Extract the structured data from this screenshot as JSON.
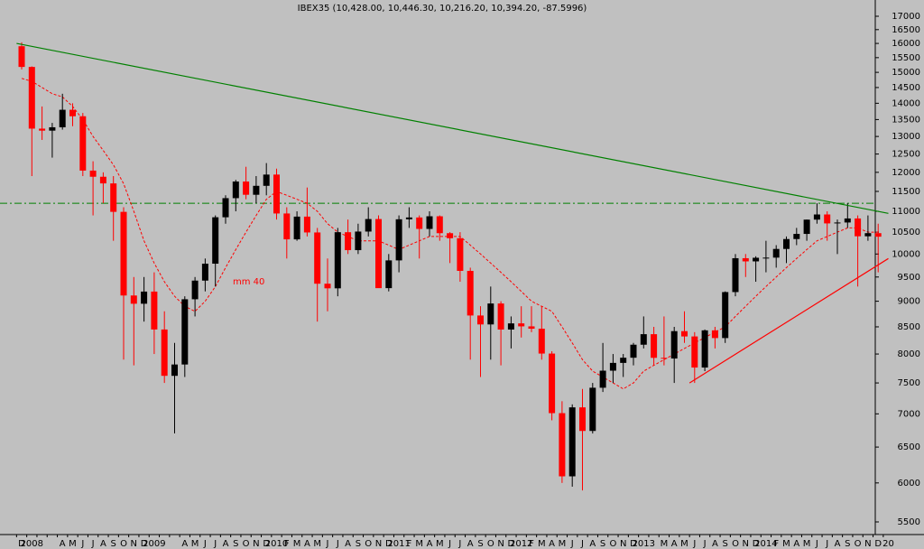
{
  "chart_data": {
    "type": "candlestick",
    "title": "IBEX35 (10,428.00, 10,446.30, 10,216.20, 10,394.20, -87.5996)",
    "log_scale": true,
    "background": "#c0c0c0",
    "up_color": "#000000",
    "down_color": "#ff0000",
    "categories": [
      "D",
      "2008",
      null,
      null,
      "A",
      "M",
      "J",
      "J",
      "A",
      "S",
      "O",
      "N",
      "D",
      "2009",
      null,
      null,
      "A",
      "M",
      "J",
      "J",
      "A",
      "S",
      "O",
      "N",
      "D",
      "2010",
      "F",
      "M",
      "A",
      "M",
      "J",
      "J",
      "A",
      "S",
      "O",
      "N",
      "D",
      "2011",
      "F",
      "M",
      "A",
      "M",
      "J",
      "J",
      "A",
      "S",
      "O",
      "N",
      "D",
      "2012",
      "F",
      "M",
      "A",
      "M",
      "J",
      "J",
      "A",
      "S",
      "O",
      "N",
      "D",
      "2013",
      null,
      "M",
      "A",
      "M",
      "J",
      "J",
      "A",
      "S",
      "O",
      "N",
      "D",
      "2014",
      "F",
      "M",
      "A",
      "M",
      "J",
      "J",
      "A",
      "S",
      "O",
      "N",
      "D",
      "20"
    ],
    "open": [
      15900,
      15182,
      13229,
      13170,
      13269,
      13798,
      13600,
      12046,
      11882,
      11707,
      10987,
      9116,
      8950,
      9196,
      8450,
      7620,
      7815,
      9040,
      9424,
      9787,
      10855,
      11328,
      11756,
      11414,
      11644,
      11940,
      10947,
      10333,
      10871,
      10493,
      9359,
      9263,
      10499,
      10087,
      10514,
      10812,
      9267,
      9859,
      10806,
      10850,
      10576,
      10879,
      10476,
      10359,
      9631,
      8718,
      8546,
      8955,
      8449,
      8566,
      8509,
      8465,
      8008,
      7011,
      6089,
      7102,
      6738,
      7420,
      7708,
      7843,
      7934,
      8168,
      8362,
      7932,
      7920,
      8419,
      8320,
      7762,
      8434,
      8290,
      9186,
      9907,
      9837,
      9917,
      9920,
      10114,
      10340,
      10459,
      10798,
      10923,
      10707,
      10729,
      10826,
      10404,
      10477,
      null
    ],
    "high": [
      16040,
      15200,
      13900,
      13400,
      14300,
      14000,
      13700,
      12300,
      12000,
      11900,
      11100,
      9500,
      9500,
      9600,
      8800,
      8200,
      9100,
      9500,
      9900,
      10900,
      11400,
      11800,
      12150,
      11900,
      12250,
      12100,
      11100,
      11000,
      11600,
      10600,
      9900,
      10600,
      10800,
      10700,
      11100,
      10900,
      10000,
      10900,
      11100,
      10900,
      11000,
      10900,
      10500,
      10500,
      9700,
      8900,
      9300,
      9000,
      8700,
      8900,
      8900,
      8900,
      8050,
      7200,
      7150,
      7400,
      7500,
      8200,
      8000,
      8000,
      8200,
      8700,
      8500,
      8700,
      8500,
      8800,
      8400,
      8450,
      8500,
      9200,
      10000,
      10000,
      9950,
      10300,
      10200,
      10400,
      10600,
      10800,
      11200,
      11000,
      10800,
      11200,
      10900,
      10900,
      10700,
      null
    ],
    "low": [
      15100,
      11900,
      12900,
      12400,
      13200,
      13300,
      11900,
      10900,
      11200,
      10300,
      7900,
      7800,
      8600,
      8000,
      7500,
      6700,
      7600,
      8700,
      9200,
      9300,
      10700,
      11000,
      11300,
      11200,
      11400,
      10800,
      9900,
      10300,
      10400,
      8600,
      8800,
      9100,
      10000,
      10000,
      10400,
      9300,
      9200,
      9600,
      10600,
      9900,
      10400,
      10300,
      9800,
      9400,
      7900,
      7600,
      7900,
      7800,
      8100,
      8300,
      8400,
      7900,
      6900,
      6000,
      5950,
      5900,
      6700,
      7350,
      7500,
      7600,
      7800,
      8100,
      7800,
      7800,
      7500,
      8200,
      7500,
      7700,
      8100,
      8200,
      9100,
      9500,
      9400,
      9600,
      9700,
      9800,
      10200,
      10300,
      10700,
      10300,
      10000,
      10600,
      9300,
      10300,
      9600,
      null
    ],
    "close": [
      15182,
      13229,
      13170,
      13269,
      13798,
      13600,
      12046,
      11882,
      11707,
      10987,
      9116,
      8950,
      9196,
      8450,
      7620,
      7815,
      9040,
      9424,
      9787,
      10855,
      11328,
      11756,
      11414,
      11644,
      11940,
      10947,
      10333,
      10871,
      10493,
      9359,
      9263,
      10499,
      10087,
      10514,
      10812,
      9267,
      9859,
      10806,
      10850,
      10576,
      10879,
      10476,
      10359,
      9631,
      8718,
      8546,
      8955,
      8449,
      8566,
      8509,
      8465,
      8008,
      7011,
      6089,
      7102,
      6738,
      7420,
      7708,
      7843,
      7934,
      8168,
      8362,
      7932,
      7920,
      8419,
      8320,
      7762,
      8434,
      8290,
      9186,
      9907,
      9837,
      9917,
      9920,
      10114,
      10340,
      10459,
      10798,
      10923,
      10707,
      10729,
      10826,
      10404,
      10477,
      10394,
      null
    ],
    "moving_average": {
      "label": "mm 40",
      "color": "#ff0000",
      "values": [
        14800,
        14700,
        14500,
        14300,
        14200,
        13900,
        13500,
        13000,
        12600,
        12200,
        11700,
        11000,
        10300,
        9800,
        9400,
        9100,
        8900,
        8800,
        9000,
        9300,
        9700,
        10100,
        10500,
        10900,
        11300,
        11500,
        11400,
        11300,
        11200,
        11000,
        10700,
        10500,
        10400,
        10300,
        10300,
        10300,
        10200,
        10100,
        10200,
        10300,
        10400,
        10400,
        10400,
        10400,
        10200,
        10000,
        9800,
        9600,
        9400,
        9200,
        9000,
        8900,
        8800,
        8500,
        8200,
        7900,
        7700,
        7600,
        7500,
        7400,
        7500,
        7700,
        7800,
        7900,
        8000,
        8100,
        8200,
        8300,
        8400,
        8500,
        8700,
        8900,
        9100,
        9300,
        9500,
        9700,
        9900,
        10100,
        10300,
        10400,
        10500,
        10600,
        10600,
        10500,
        10500,
        null
      ]
    },
    "trend_lines": [
      {
        "color": "#008000",
        "points": [
          [
            -0.5,
            16000
          ],
          [
            85,
            10950
          ]
        ]
      },
      {
        "color": "#ff0000",
        "points": [
          [
            65.5,
            7500
          ],
          [
            85,
            9900
          ]
        ]
      }
    ],
    "horizontal_line": {
      "value": 11200,
      "color": "#008000"
    },
    "ylim": [
      5347,
      17628
    ],
    "yticks": [
      5500,
      6000,
      6500,
      7000,
      7500,
      8000,
      8500,
      9000,
      9500,
      10000,
      10500,
      11000,
      11500,
      12000,
      12500,
      13000,
      13500,
      14000,
      14500,
      15000,
      15500,
      16000,
      16500,
      17000
    ]
  }
}
